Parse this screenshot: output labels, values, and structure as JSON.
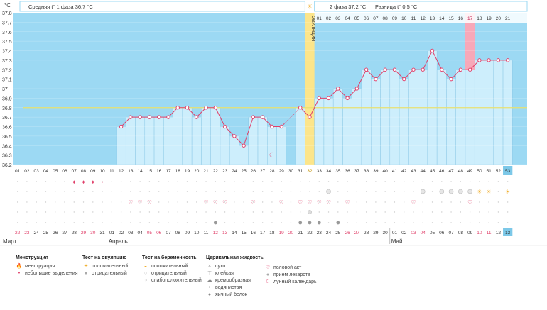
{
  "axis": {
    "unit": "°C",
    "y_ticks": [
      "37.8",
      "37.7",
      "37.6",
      "37.5",
      "37.4",
      "37.3",
      "37.2",
      "37.1",
      "37",
      "36.9",
      "36.8",
      "36.7",
      "36.6",
      "36.5",
      "36.4",
      "36.3",
      "36.2"
    ]
  },
  "header": {
    "phase1": "Средняя t° 1 фаза 36.7 °C",
    "phase2": "2 фаза 37.2 °C",
    "diff": "Разница t° 0.5 °C"
  },
  "ovulation_label": "ОВУЛЯЦИЯ",
  "months": [
    "Март",
    "Апрель",
    "Май"
  ],
  "cycle_days": [
    "01",
    "02",
    "03",
    "04",
    "05",
    "06",
    "07",
    "08",
    "09",
    "10",
    "11",
    "12",
    "13",
    "14",
    "15",
    "16",
    "17",
    "18",
    "19",
    "20",
    "21",
    "22",
    "23",
    "24",
    "25",
    "26",
    "27",
    "28",
    "29",
    "30",
    "31",
    "32",
    "33",
    "34",
    "35",
    "36",
    "37",
    "38",
    "39",
    "40",
    "41",
    "42",
    "43",
    "44",
    "45",
    "46",
    "47",
    "48",
    "49",
    "50",
    "51",
    "52",
    "53"
  ],
  "cycle_days_top": [
    "01",
    "02",
    "03",
    "04",
    "05",
    "06",
    "07",
    "08",
    "09",
    "10",
    "11",
    "12",
    "13",
    "14",
    "15",
    "16",
    "17",
    "18",
    "19",
    "20",
    "21"
  ],
  "calendar_dates": [
    "22",
    "23",
    "24",
    "25",
    "26",
    "27",
    "28",
    "29",
    "30",
    "31",
    "01",
    "02",
    "03",
    "04",
    "05",
    "06",
    "07",
    "08",
    "09",
    "10",
    "11",
    "12",
    "13",
    "14",
    "15",
    "16",
    "17",
    "18",
    "19",
    "20",
    "21",
    "22",
    "23",
    "24",
    "25",
    "26",
    "27",
    "28",
    "29",
    "30",
    "01",
    "02",
    "03",
    "04",
    "05",
    "06",
    "07",
    "08",
    "09",
    "10",
    "11",
    "12",
    "13"
  ],
  "calendar_weekend_indices": [
    0,
    1,
    7,
    8,
    14,
    15,
    21,
    22,
    28,
    29,
    35,
    36,
    42,
    43,
    49,
    50
  ],
  "chart_data": {
    "type": "line",
    "ylim": [
      36.2,
      37.8
    ],
    "x": [
      12,
      13,
      14,
      15,
      16,
      17,
      18,
      19,
      20,
      21,
      22,
      23,
      24,
      25,
      26,
      27,
      28,
      29,
      31,
      32,
      33,
      34,
      35,
      36,
      37,
      38,
      39,
      40,
      41,
      42,
      43,
      44,
      45,
      46,
      47,
      48,
      49,
      50,
      51,
      52,
      53
    ],
    "values": [
      36.6,
      36.7,
      36.7,
      36.7,
      36.7,
      36.7,
      36.8,
      36.8,
      36.7,
      36.8,
      36.8,
      36.6,
      36.5,
      36.4,
      36.7,
      36.7,
      36.6,
      36.6,
      36.8,
      36.7,
      36.9,
      36.9,
      37.0,
      36.9,
      37.0,
      37.2,
      37.1,
      37.2,
      37.2,
      37.1,
      37.2,
      37.2,
      37.4,
      37.2,
      37.1,
      37.2,
      37.2,
      37.3,
      37.3,
      37.3,
      37.3
    ],
    "coverline": 36.8,
    "ovulation_day": 32,
    "highlight_day": 49,
    "colors": {
      "line": "#e0406a",
      "fill": "#cdeefc",
      "bg": "#9cd9f3",
      "coverline": "#e8e070",
      "ovulation": "#fce58a",
      "highlight": "#f7a8b8"
    }
  },
  "markers": {
    "menstruation_days": [
      7,
      8,
      9
    ],
    "small_bleeding_days": [
      10
    ],
    "ovulation_test_positive_days": [
      50,
      51,
      53
    ],
    "pregnancy_test_days": [
      34,
      44,
      46,
      47,
      48,
      49
    ],
    "intercourse_days": [
      13,
      14,
      15,
      21,
      22,
      23,
      26,
      29,
      31,
      32,
      33,
      34,
      36,
      43,
      49
    ],
    "medicine_days": [
      32
    ],
    "mucus_days": [
      22,
      31,
      32,
      33,
      35
    ],
    "lunar_day": 28
  },
  "legend": {
    "col1": {
      "title": "Менструация",
      "items": [
        "менструация",
        "небольшие выделения"
      ]
    },
    "col2": {
      "title": "Тест на овуляцию",
      "items": [
        "положительный",
        "отрицательный"
      ]
    },
    "col3": {
      "title": "Тест на беременность",
      "items": [
        "положительный",
        "отрицательный",
        "слабоположительный"
      ]
    },
    "col4": {
      "title": "Церикальная жидкость",
      "items": [
        "сухо",
        "клейкая",
        "кремообразная",
        "водянистая",
        "яичный белок"
      ]
    },
    "col5": {
      "items": [
        "половой акт",
        "прием лекарств",
        "лунный календарь"
      ]
    }
  }
}
